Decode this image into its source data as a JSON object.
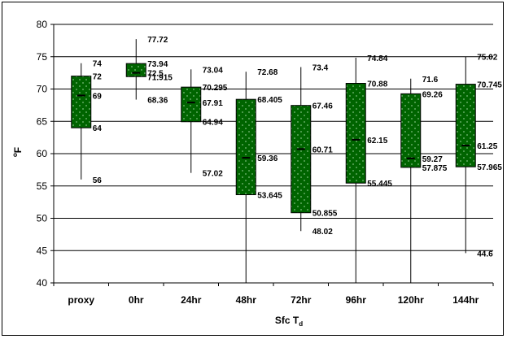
{
  "chart_data": {
    "type": "boxplot",
    "xlabel": "Sfc T",
    "xlabel_sub": "d",
    "ylabel": "F",
    "ylabel_sup": "o",
    "ylim": [
      40,
      80
    ],
    "yticks": [
      "40",
      "45",
      "50",
      "55",
      "60",
      "65",
      "70",
      "75",
      "80"
    ],
    "grid": true,
    "colors": {
      "box": "#006400",
      "box_dots": "#7fbf7f",
      "line": "#000000"
    },
    "categories": [
      "proxy",
      "0hr",
      "24hr",
      "48hr",
      "72hr",
      "96hr",
      "120hr",
      "144hr"
    ],
    "boxes": [
      {
        "max": 74,
        "q3": 72,
        "median": 69,
        "q1": 64,
        "min": 56,
        "labels": {
          "max": "74",
          "q3": "72",
          "median": "69",
          "q1": "64",
          "min": "56"
        }
      },
      {
        "max": 77.72,
        "q3": 73.94,
        "median": 72.5,
        "q1": 71.915,
        "min": 68.36,
        "labels": {
          "max": "77.72",
          "q3": "73.94",
          "median": "72.5",
          "q1": "71.915",
          "min": "68.36"
        }
      },
      {
        "max": 73.04,
        "q3": 70.295,
        "median": 67.91,
        "q1": 64.94,
        "min": 57.02,
        "labels": {
          "max": "73.04",
          "q3": "70.295",
          "median": "67.91",
          "q1": "64.94",
          "min": "57.02"
        }
      },
      {
        "max": 72.68,
        "q3": 68.405,
        "median": 59.36,
        "q1": 53.645,
        "min": 40,
        "labels": {
          "max": "72.68",
          "q3": "68.405",
          "median": "59.36",
          "q1": "53.645",
          "min": ""
        }
      },
      {
        "max": 73.4,
        "q3": 67.46,
        "median": 60.71,
        "q1": 50.855,
        "min": 48.02,
        "labels": {
          "max": "73.4",
          "q3": "67.46",
          "median": "60.71",
          "q1": "50.855",
          "min": "48.02"
        }
      },
      {
        "max": 74.84,
        "q3": 70.88,
        "median": 62.15,
        "q1": 55.445,
        "min": 40,
        "labels": {
          "max": "74.84",
          "q3": "70.88",
          "median": "62.15",
          "q1": "55.445",
          "min": ""
        }
      },
      {
        "max": 71.6,
        "q3": 69.26,
        "median": 59.27,
        "q1": 57.875,
        "min": 40,
        "labels": {
          "max": "71.6",
          "q3": "69.26",
          "median": "59.27",
          "q1": "57.875",
          "min": ""
        }
      },
      {
        "max": 75.02,
        "q3": 70.745,
        "median": 61.25,
        "q1": 57.965,
        "min": 44.6,
        "labels": {
          "max": "75.02",
          "q3": "70.745",
          "median": "61.25",
          "q1": "57.965",
          "min": "44.6"
        }
      }
    ]
  }
}
